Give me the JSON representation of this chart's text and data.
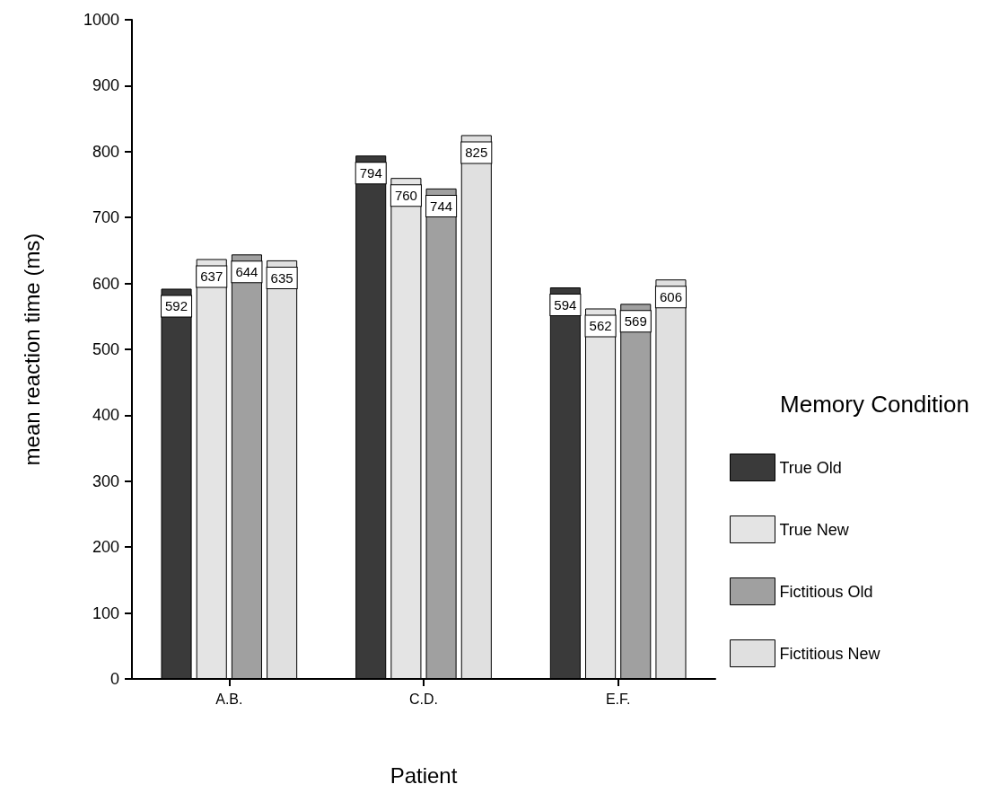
{
  "chart_data": {
    "type": "bar",
    "xlabel": "Patient",
    "ylabel": "mean reaction time (ms)",
    "legend_title": "Memory Condition",
    "legend": "right",
    "grid": false,
    "data_labels": true,
    "categories": [
      "A.B.",
      "C.D.",
      "E.F."
    ],
    "ylim": [
      0,
      1000
    ],
    "yticks": [
      0,
      100,
      200,
      300,
      400,
      500,
      600,
      700,
      800,
      900,
      1000
    ],
    "series": [
      {
        "name": "True Old",
        "color": "#3a3a3a",
        "values": [
          592,
          794,
          594
        ]
      },
      {
        "name": "True New",
        "color": "#e4e4e4",
        "values": [
          637,
          760,
          562
        ]
      },
      {
        "name": "Fictitious Old",
        "color": "#a0a0a0",
        "values": [
          644,
          744,
          569
        ]
      },
      {
        "name": "Fictitious New",
        "color": "#e0e0e0",
        "values": [
          635,
          825,
          606
        ]
      }
    ]
  }
}
